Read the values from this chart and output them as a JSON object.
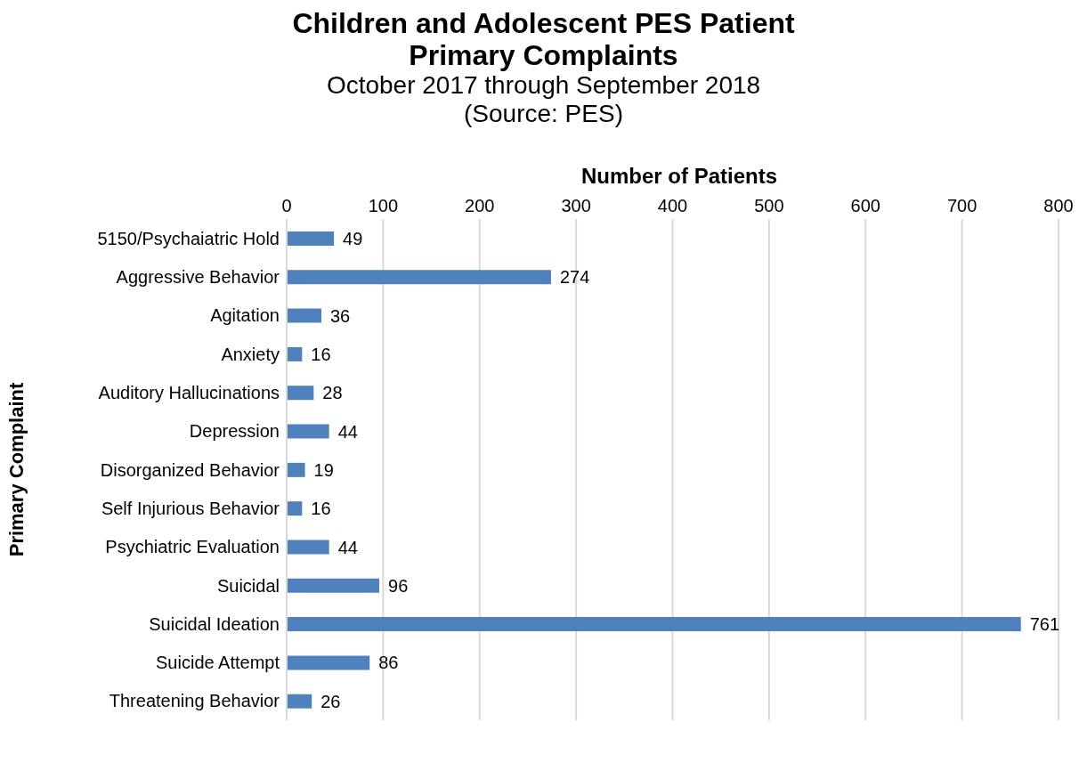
{
  "chart_data": {
    "type": "bar",
    "orientation": "horizontal",
    "title": "Children and Adolescent PES Patient Primary Complaints",
    "subtitle": "October 2017 through September 2018",
    "annotations": [
      "(Source: PES)"
    ],
    "xlabel": "Number of Patients",
    "ylabel": "Primary Complaint",
    "categories": [
      "5150/Psychaiatric Hold",
      "Aggressive Behavior",
      "Agitation",
      "Anxiety",
      "Auditory Hallucinations",
      "Depression",
      "Disorganized Behavior",
      "Self Injurious Behavior",
      "Psychiatric Evaluation",
      "Suicidal",
      "Suicidal Ideation",
      "Suicide Attempt",
      "Threatening Behavior"
    ],
    "values": [
      49,
      274,
      36,
      16,
      28,
      44,
      19,
      16,
      44,
      96,
      761,
      86,
      26
    ],
    "color": "#4f81bd",
    "xlim": [
      0,
      800
    ],
    "xticks": [
      0,
      100,
      200,
      300,
      400,
      500,
      600,
      700,
      800
    ],
    "grid": "x",
    "data_labels": true
  }
}
